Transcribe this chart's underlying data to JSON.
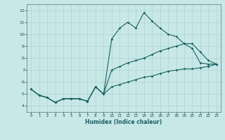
{
  "xlabel": "Humidex (Indice chaleur)",
  "bg_color": "#c8e8e8",
  "line_color": "#1a6060",
  "grid_color": "#aacccc",
  "xlim": [
    -0.5,
    23.5
  ],
  "ylim": [
    3.5,
    12.5
  ],
  "xticks": [
    0,
    1,
    2,
    3,
    4,
    5,
    6,
    7,
    8,
    9,
    10,
    11,
    12,
    13,
    14,
    15,
    16,
    17,
    18,
    19,
    20,
    21,
    22,
    23
  ],
  "yticks": [
    4,
    5,
    6,
    7,
    8,
    9,
    10,
    11,
    12
  ],
  "hours": [
    0,
    1,
    2,
    3,
    4,
    5,
    6,
    7,
    8,
    9,
    10,
    11,
    12,
    13,
    14,
    15,
    16,
    17,
    18,
    19,
    20,
    21,
    22,
    23
  ],
  "line_top": [
    5.4,
    4.9,
    4.7,
    4.3,
    4.6,
    4.6,
    4.6,
    4.4,
    5.6,
    5.0,
    9.6,
    10.5,
    11.0,
    10.5,
    11.8,
    11.1,
    10.5,
    10.0,
    9.8,
    9.2,
    8.8,
    7.6,
    7.5,
    7.5
  ],
  "line_mid": [
    5.4,
    4.9,
    4.7,
    4.3,
    4.6,
    4.6,
    4.6,
    4.4,
    5.6,
    5.0,
    7.0,
    7.3,
    7.6,
    7.8,
    8.0,
    8.3,
    8.6,
    8.8,
    9.0,
    9.2,
    9.2,
    8.5,
    7.8,
    7.5
  ],
  "line_bot": [
    5.4,
    4.9,
    4.7,
    4.3,
    4.6,
    4.6,
    4.6,
    4.4,
    5.6,
    5.0,
    5.6,
    5.8,
    6.0,
    6.2,
    6.4,
    6.5,
    6.7,
    6.9,
    7.0,
    7.1,
    7.1,
    7.2,
    7.3,
    7.5
  ]
}
